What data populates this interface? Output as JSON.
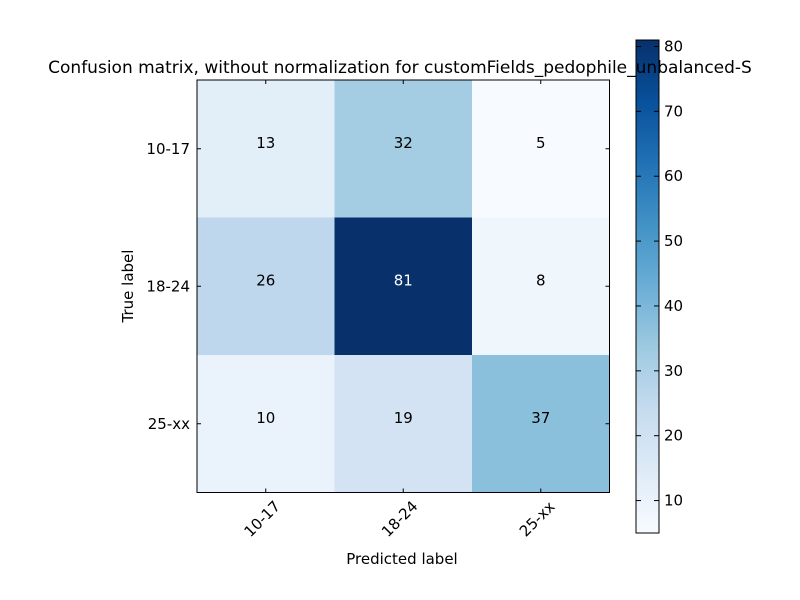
{
  "chart_data": {
    "type": "heatmap",
    "title": "Confusion matrix, without normalization for customFields_pedophile_unbalanced-S",
    "xlabel": "Predicted label",
    "ylabel": "True label",
    "x_categories": [
      "10-17",
      "18-24",
      "25-xx"
    ],
    "y_categories": [
      "10-17",
      "18-24",
      "25-xx"
    ],
    "values": [
      [
        13,
        32,
        5
      ],
      [
        26,
        81,
        8
      ],
      [
        10,
        19,
        37
      ]
    ],
    "colormap": "Blues",
    "colorbar": {
      "min": 5,
      "max": 81,
      "ticks": [
        10,
        20,
        30,
        40,
        50,
        60,
        70,
        80
      ]
    },
    "text_color_light": "#ffffff",
    "text_color_dark": "#000000"
  }
}
